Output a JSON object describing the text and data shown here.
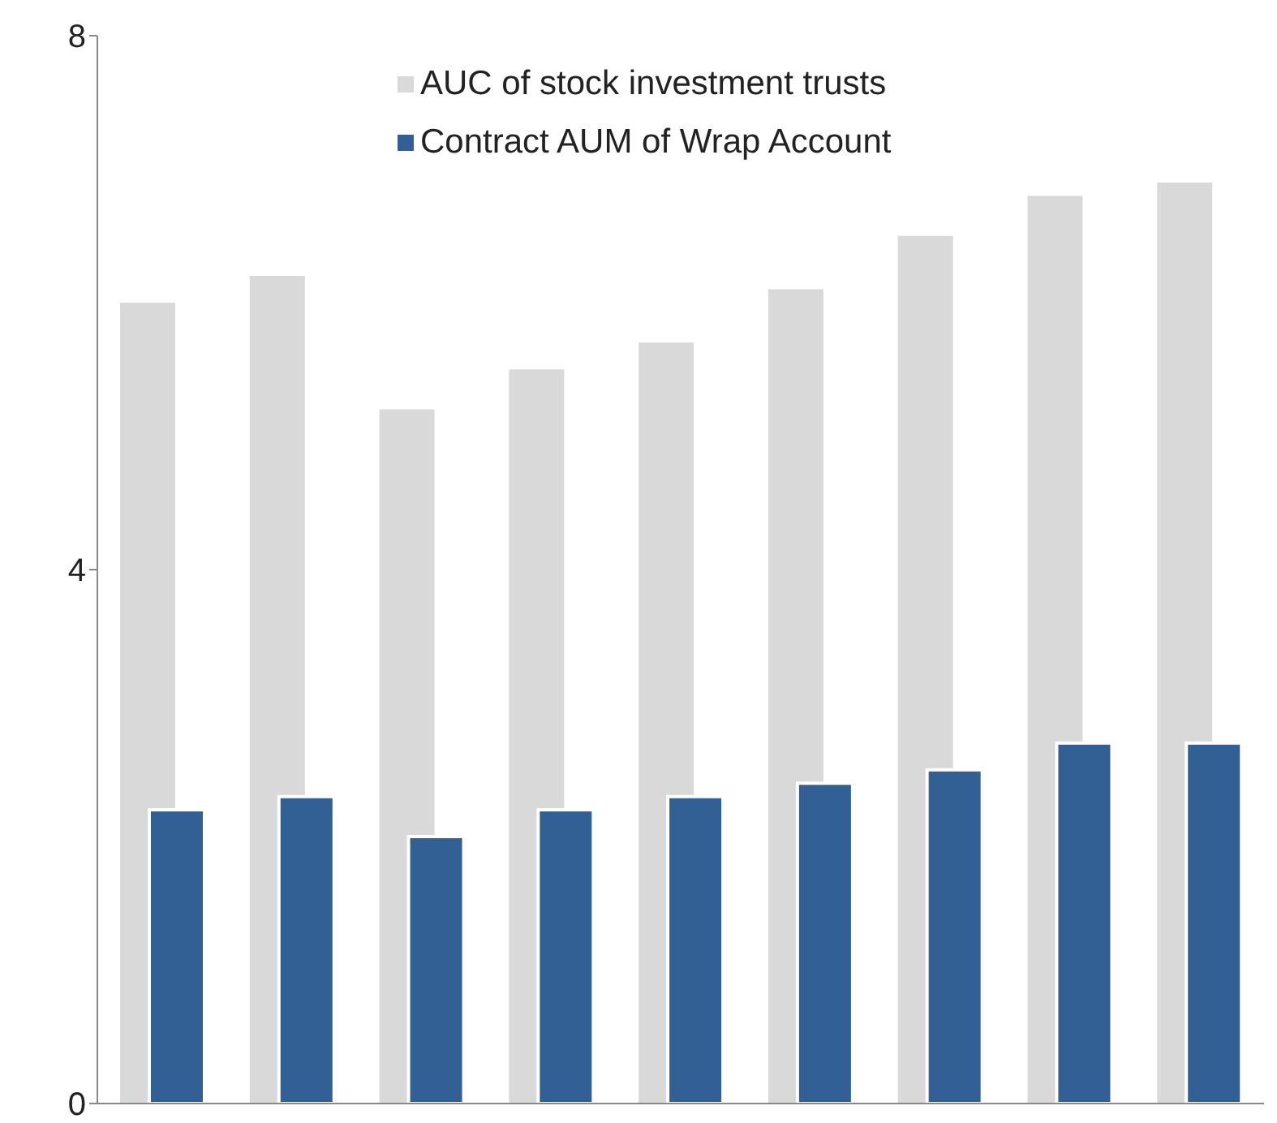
{
  "chart_data": {
    "type": "bar",
    "categories": [
      null,
      null,
      null,
      null,
      null,
      null,
      null,
      null,
      null
    ],
    "series": [
      {
        "name": "AUC of stock investment trusts",
        "color": "#d9d9d9",
        "values": [
          6.0,
          6.2,
          5.2,
          5.5,
          5.7,
          6.1,
          6.5,
          6.8,
          6.9
        ]
      },
      {
        "name": "Contract AUM of Wrap Account",
        "color": "#336094",
        "values": [
          2.2,
          2.3,
          2.0,
          2.2,
          2.3,
          2.4,
          2.5,
          2.7,
          2.7
        ]
      }
    ],
    "ylim": [
      0,
      8
    ],
    "yticks": [
      0,
      4,
      8
    ],
    "tick_labels": "y",
    "legend": "top",
    "grid": false
  }
}
